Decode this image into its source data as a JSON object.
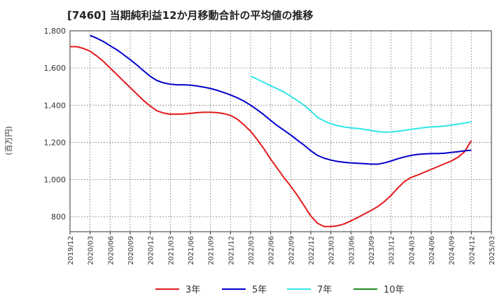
{
  "chart_data": {
    "type": "line",
    "title": "[7460]  当期純利益12か月移動合計の平均値の推移",
    "ylabel": "(百万円)",
    "xlabel": "",
    "ylim": [
      720,
      1800
    ],
    "yticks": [
      800,
      1000,
      1200,
      1400,
      1600,
      1800
    ],
    "ytick_labels": [
      "800",
      "1,000",
      "1,200",
      "1,400",
      "1,600",
      "1,800"
    ],
    "xtick_labels": [
      "2019/12",
      "2020/03",
      "2020/06",
      "2020/09",
      "2020/12",
      "2021/03",
      "2021/06",
      "2021/09",
      "2021/12",
      "2022/03",
      "2022/06",
      "2022/09",
      "2022/12",
      "2023/03",
      "2023/06",
      "2023/09",
      "2023/12",
      "2024/03",
      "2024/06",
      "2024/09",
      "2024/12",
      "2025/03"
    ],
    "grid": true,
    "legend_position": "bottom",
    "series": [
      {
        "name": "3年",
        "color": "#e41a1c",
        "x": [
          "2019/12",
          "2020/01",
          "2020/02",
          "2020/03",
          "2020/04",
          "2020/05",
          "2020/06",
          "2020/07",
          "2020/08",
          "2020/09",
          "2020/10",
          "2020/11",
          "2020/12",
          "2021/01",
          "2021/02",
          "2021/03",
          "2021/04",
          "2021/05",
          "2021/06",
          "2021/07",
          "2021/08",
          "2021/09",
          "2021/10",
          "2021/11",
          "2021/12",
          "2022/01",
          "2022/02",
          "2022/03",
          "2022/04",
          "2022/05",
          "2022/06",
          "2022/07",
          "2022/08",
          "2022/09",
          "2022/10",
          "2022/11",
          "2022/12",
          "2023/01",
          "2023/02",
          "2023/03",
          "2023/04",
          "2023/05",
          "2023/06",
          "2023/07",
          "2023/08",
          "2023/09",
          "2023/10",
          "2023/11",
          "2023/12",
          "2024/01",
          "2024/02",
          "2024/03",
          "2024/04",
          "2024/05",
          "2024/06",
          "2024/07",
          "2024/08",
          "2024/09",
          "2024/10",
          "2024/11",
          "2024/12"
        ],
        "values": [
          1715,
          1715,
          1705,
          1690,
          1665,
          1635,
          1600,
          1565,
          1530,
          1495,
          1460,
          1425,
          1395,
          1370,
          1358,
          1352,
          1352,
          1353,
          1356,
          1360,
          1362,
          1362,
          1360,
          1355,
          1345,
          1325,
          1295,
          1260,
          1215,
          1165,
          1110,
          1060,
          1010,
          965,
          915,
          860,
          805,
          765,
          748,
          748,
          752,
          762,
          778,
          796,
          815,
          834,
          855,
          882,
          915,
          955,
          990,
          1012,
          1025,
          1040,
          1055,
          1070,
          1085,
          1100,
          1120,
          1150,
          1210
        ]
      },
      {
        "name": "5年",
        "color": "#0000cc",
        "x": [
          "2020/03",
          "2020/04",
          "2020/05",
          "2020/06",
          "2020/07",
          "2020/08",
          "2020/09",
          "2020/10",
          "2020/11",
          "2020/12",
          "2021/01",
          "2021/02",
          "2021/03",
          "2021/04",
          "2021/05",
          "2021/06",
          "2021/07",
          "2021/08",
          "2021/09",
          "2021/10",
          "2021/11",
          "2021/12",
          "2022/01",
          "2022/02",
          "2022/03",
          "2022/04",
          "2022/05",
          "2022/06",
          "2022/07",
          "2022/08",
          "2022/09",
          "2022/10",
          "2022/11",
          "2022/12",
          "2023/01",
          "2023/02",
          "2023/03",
          "2023/04",
          "2023/05",
          "2023/06",
          "2023/07",
          "2023/08",
          "2023/09",
          "2023/10",
          "2023/11",
          "2023/12",
          "2024/01",
          "2024/02",
          "2024/03",
          "2024/04",
          "2024/05",
          "2024/06",
          "2024/07",
          "2024/08",
          "2024/09",
          "2024/10",
          "2024/11",
          "2024/12"
        ],
        "values": [
          1775,
          1760,
          1742,
          1720,
          1698,
          1672,
          1645,
          1616,
          1585,
          1555,
          1533,
          1520,
          1513,
          1510,
          1510,
          1508,
          1503,
          1497,
          1490,
          1480,
          1468,
          1455,
          1440,
          1422,
          1400,
          1375,
          1348,
          1318,
          1290,
          1265,
          1240,
          1212,
          1185,
          1155,
          1130,
          1115,
          1105,
          1098,
          1093,
          1090,
          1088,
          1086,
          1083,
          1083,
          1090,
          1100,
          1112,
          1122,
          1130,
          1136,
          1138,
          1140,
          1140,
          1142,
          1146,
          1150,
          1155,
          1158
        ]
      },
      {
        "name": "7年",
        "color": "#33e5e5",
        "x": [
          "2022/03",
          "2022/04",
          "2022/05",
          "2022/06",
          "2022/07",
          "2022/08",
          "2022/09",
          "2022/10",
          "2022/11",
          "2022/12",
          "2023/01",
          "2023/02",
          "2023/03",
          "2023/04",
          "2023/05",
          "2023/06",
          "2023/07",
          "2023/08",
          "2023/09",
          "2023/10",
          "2023/11",
          "2023/12",
          "2024/01",
          "2024/02",
          "2024/03",
          "2024/04",
          "2024/05",
          "2024/06",
          "2024/07",
          "2024/08",
          "2024/09",
          "2024/10",
          "2024/11",
          "2024/12"
        ],
        "values": [
          1555,
          1540,
          1522,
          1505,
          1488,
          1470,
          1448,
          1425,
          1400,
          1370,
          1335,
          1315,
          1300,
          1290,
          1283,
          1278,
          1275,
          1270,
          1264,
          1258,
          1255,
          1255,
          1260,
          1265,
          1270,
          1275,
          1280,
          1283,
          1285,
          1288,
          1293,
          1298,
          1304,
          1310
        ]
      },
      {
        "name": "10年",
        "color": "#228b22",
        "x": [],
        "values": []
      }
    ]
  }
}
